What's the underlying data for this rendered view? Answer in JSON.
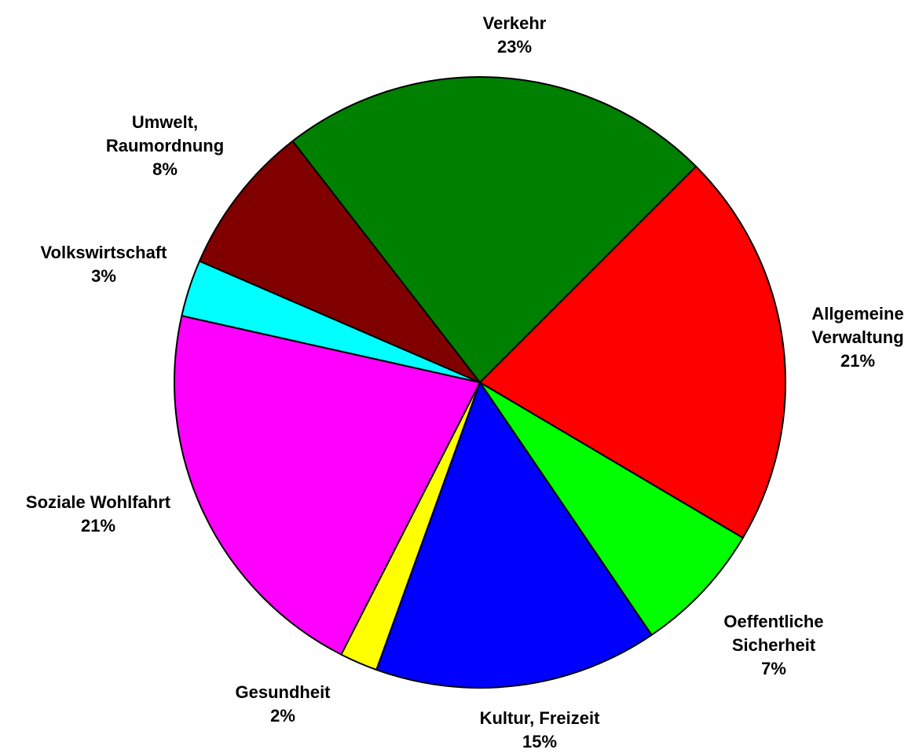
{
  "chart_data": {
    "type": "pie",
    "categories": [
      "Allgemeine Verwaltung",
      "Oeffentliche Sicherheit",
      "Kultur, Freizeit",
      "Gesundheit",
      "Soziale Wohlfahrt",
      "Volkswirtschaft",
      "Umwelt, Raumordnung",
      "Verkehr"
    ],
    "values": [
      21,
      7,
      15,
      2,
      21,
      3,
      8,
      23
    ],
    "value_labels": [
      "21%",
      "7%",
      "15%",
      "2%",
      "21%",
      "3%",
      "8%",
      "23%"
    ],
    "colors": [
      "#ff0000",
      "#00ff00",
      "#0000ff",
      "#ffff00",
      "#ff00ff",
      "#00ffff",
      "#800000",
      "#008000"
    ]
  }
}
